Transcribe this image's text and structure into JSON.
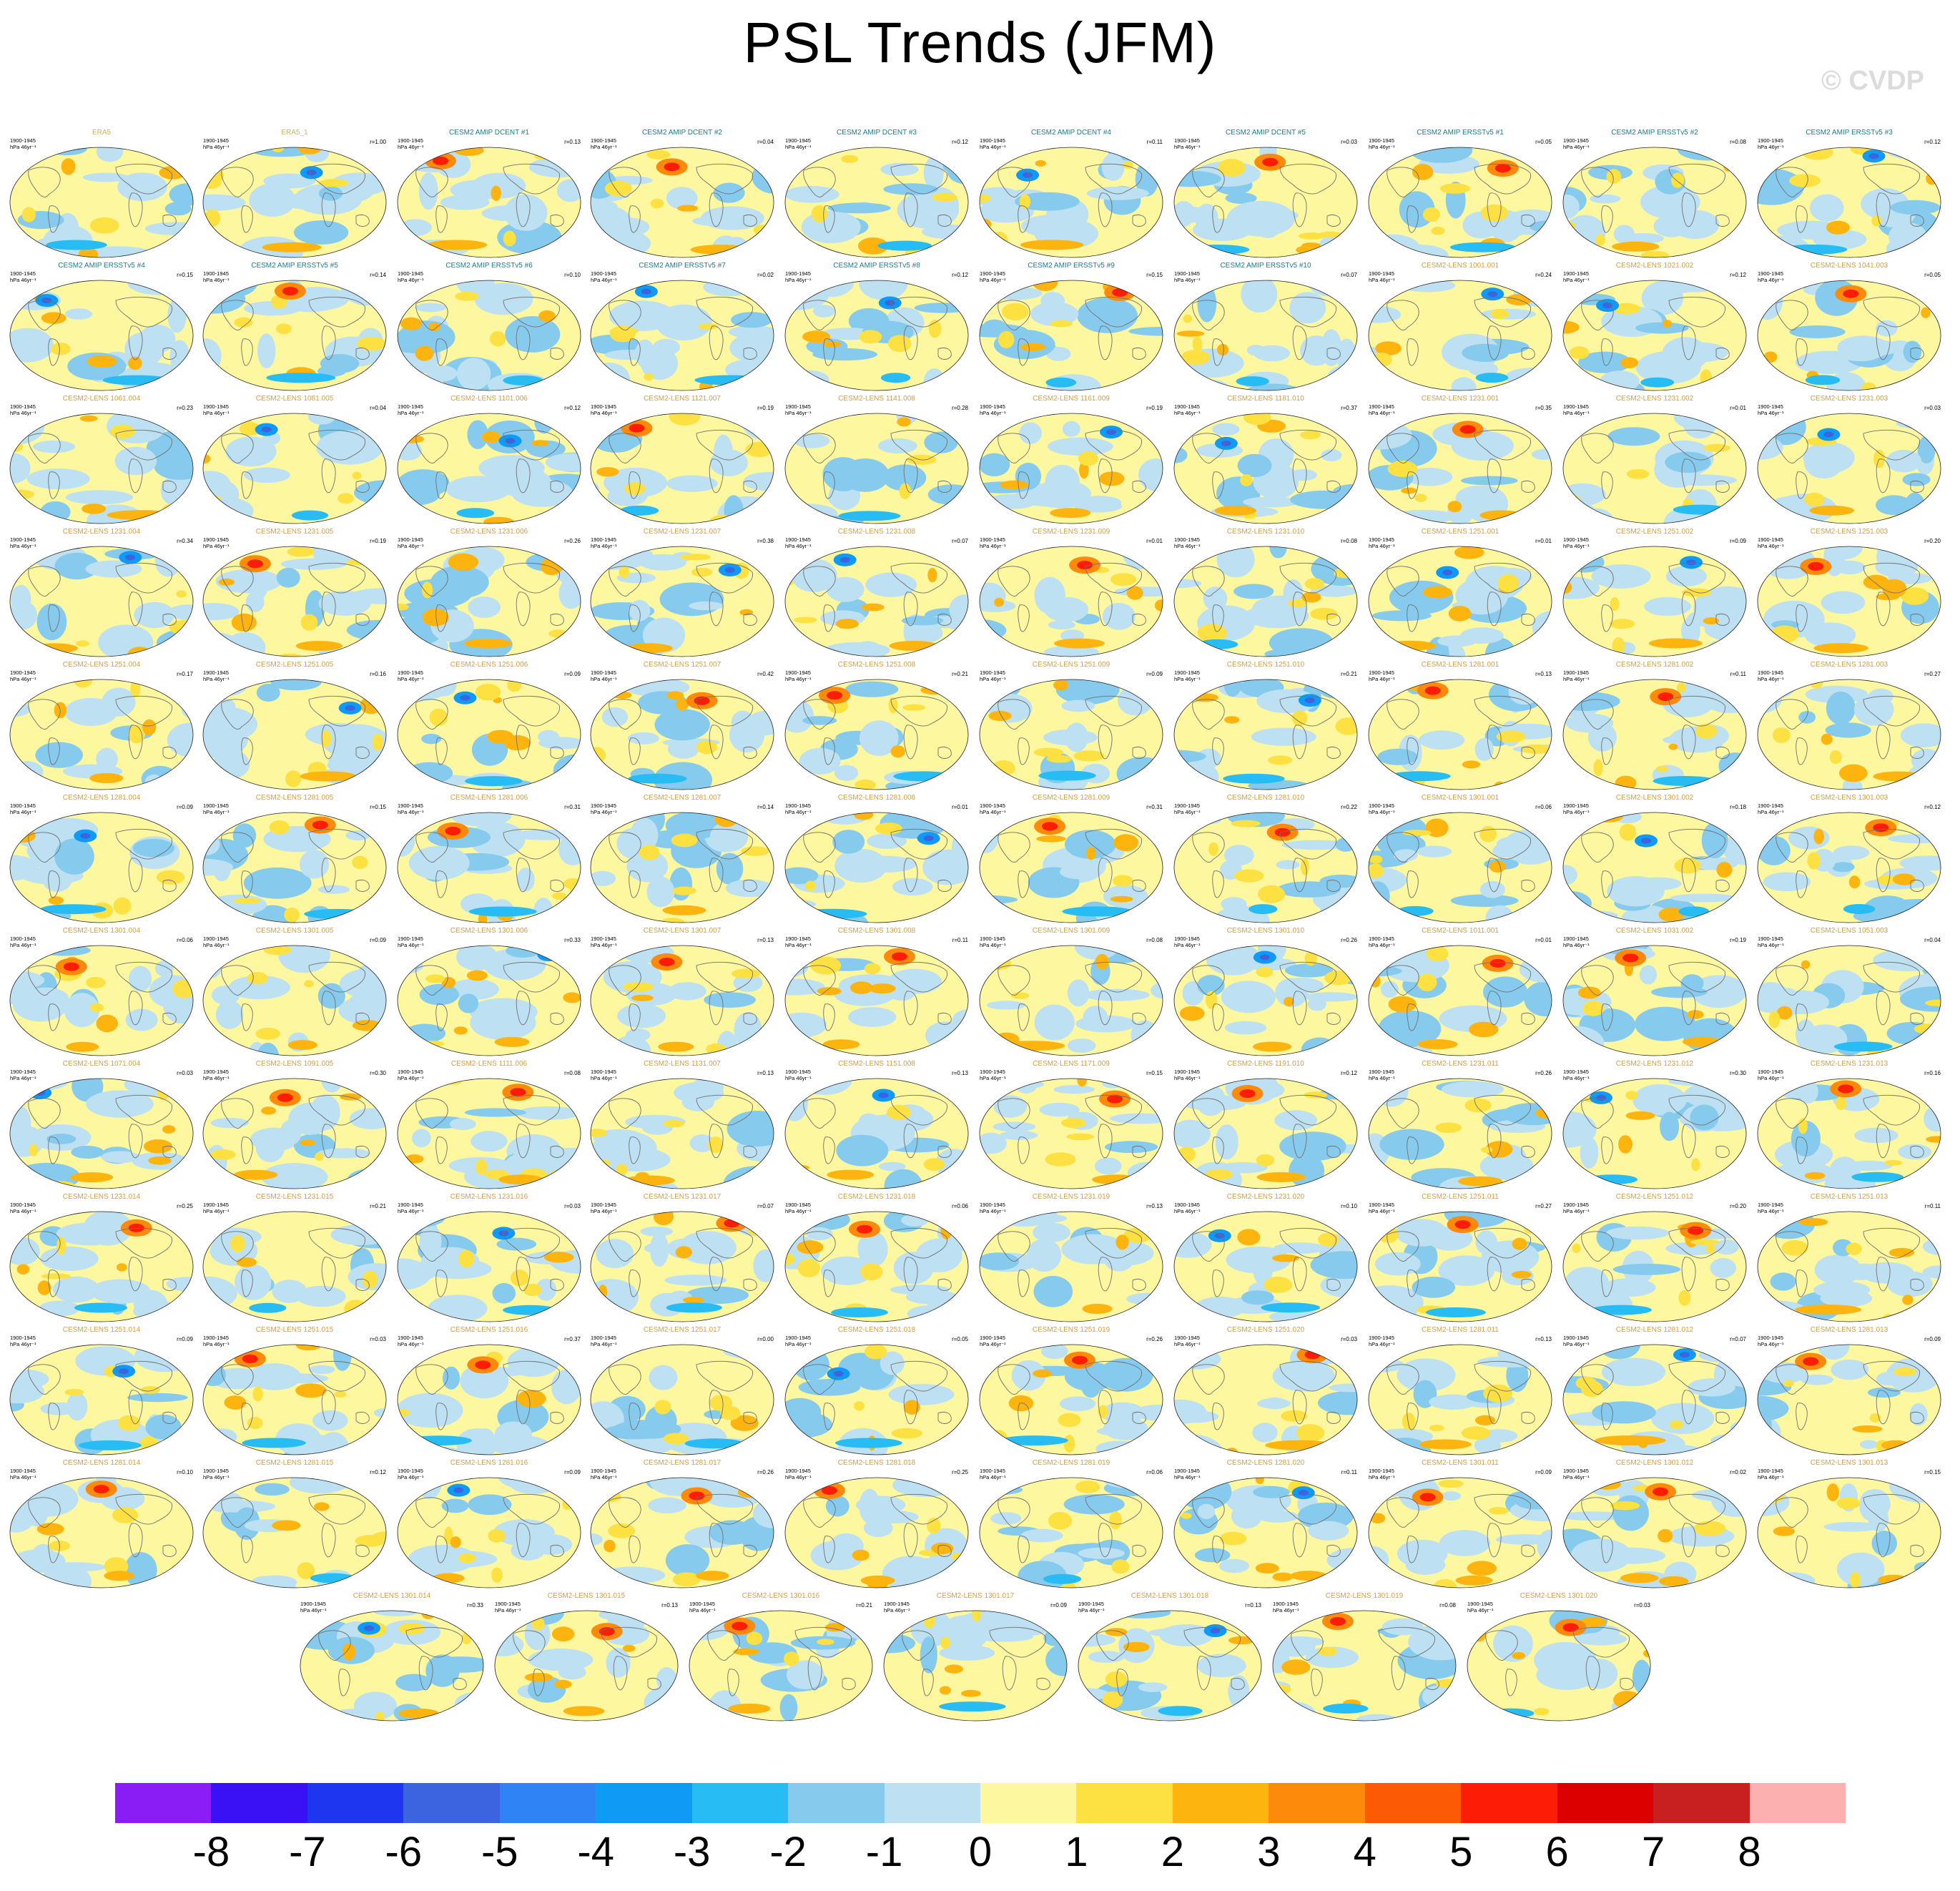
{
  "title": "PSL Trends (JFM)",
  "watermark": "© CVDP",
  "chart_data": {
    "type": "heatmap",
    "title": "PSL Trends (JFM)",
    "period": "1900-1945",
    "units": "hPa 46yr⁻¹",
    "colorbar": {
      "levels": [
        -8,
        -7,
        -6,
        -5,
        -4,
        -3,
        -2,
        -1,
        0,
        1,
        2,
        3,
        4,
        5,
        6,
        7,
        8
      ],
      "labels": [
        "-8",
        "-7",
        "-6",
        "-5",
        "-4",
        "-3",
        "-2",
        "-1",
        "0",
        "1",
        "2",
        "3",
        "4",
        "5",
        "6",
        "7",
        "8"
      ],
      "colors": [
        "#8a1cf5",
        "#3a10f5",
        "#1f36f0",
        "#3c64e0",
        "#2f83f5",
        "#0f9bf5",
        "#28bcf5",
        "#86cbee",
        "#bde1f3",
        "#fdf7a0",
        "#fde142",
        "#fdb40f",
        "#fd8a0a",
        "#fd5a05",
        "#fd1c05",
        "#dc0000",
        "#c82020",
        "#fdb0b0"
      ]
    },
    "panels": [
      {
        "name": "ERA5",
        "r": "",
        "group": "obs"
      },
      {
        "name": "ERA5_1",
        "r": "r=1.00",
        "group": "obs"
      },
      {
        "name": "CESM2 AMIP DCENT #1",
        "r": "r=0.13",
        "group": "amip"
      },
      {
        "name": "CESM2 AMIP DCENT #2",
        "r": "r=0.04",
        "group": "amip"
      },
      {
        "name": "CESM2 AMIP DCENT #3",
        "r": "r=0.12",
        "group": "amip"
      },
      {
        "name": "CESM2 AMIP DCENT #4",
        "r": "r=0.11",
        "group": "amip"
      },
      {
        "name": "CESM2 AMIP DCENT #5",
        "r": "r=0.03",
        "group": "amip"
      },
      {
        "name": "CESM2 AMIP ERSSTv5 #1",
        "r": "r=0.05",
        "group": "amip"
      },
      {
        "name": "CESM2 AMIP ERSSTv5 #2",
        "r": "r=0.08",
        "group": "amip"
      },
      {
        "name": "CESM2 AMIP ERSSTv5 #3",
        "r": "r=0.12",
        "group": "amip"
      },
      {
        "name": "CESM2 AMIP ERSSTv5 #4",
        "r": "r=0.15",
        "group": "amip"
      },
      {
        "name": "CESM2 AMIP ERSSTv5 #5",
        "r": "r=0.14",
        "group": "amip"
      },
      {
        "name": "CESM2 AMIP ERSSTv5 #6",
        "r": "r=0.10",
        "group": "amip"
      },
      {
        "name": "CESM2 AMIP ERSSTv5 #7",
        "r": "r=0.02",
        "group": "amip"
      },
      {
        "name": "CESM2 AMIP ERSSTv5 #8",
        "r": "r=0.12",
        "group": "amip"
      },
      {
        "name": "CESM2 AMIP ERSSTv5 #9",
        "r": "r=0.15",
        "group": "amip"
      },
      {
        "name": "CESM2 AMIP ERSSTv5 #10",
        "r": "r=0.07",
        "group": "amip"
      },
      {
        "name": "CESM2-LENS 1001.001",
        "r": "r=0.24",
        "group": "lens"
      },
      {
        "name": "CESM2-LENS 1021.002",
        "r": "r=0.12",
        "group": "lens"
      },
      {
        "name": "CESM2-LENS 1041.003",
        "r": "r=0.05",
        "group": "lens"
      },
      {
        "name": "CESM2-LENS 1061.004",
        "r": "r=0.23",
        "group": "lens"
      },
      {
        "name": "CESM2-LENS 1081.005",
        "r": "r=0.04",
        "group": "lens"
      },
      {
        "name": "CESM2-LENS 1101.006",
        "r": "r=0.12",
        "group": "lens"
      },
      {
        "name": "CESM2-LENS 1121.007",
        "r": "r=0.19",
        "group": "lens"
      },
      {
        "name": "CESM2-LENS 1141.008",
        "r": "r=0.28",
        "group": "lens"
      },
      {
        "name": "CESM2-LENS 1161.009",
        "r": "r=0.19",
        "group": "lens"
      },
      {
        "name": "CESM2-LENS 1181.010",
        "r": "r=0.37",
        "group": "lens"
      },
      {
        "name": "CESM2-LENS 1231.001",
        "r": "r=0.35",
        "group": "lens"
      },
      {
        "name": "CESM2-LENS 1231.002",
        "r": "r=0.01",
        "group": "lens"
      },
      {
        "name": "CESM2-LENS 1231.003",
        "r": "r=0.03",
        "group": "lens"
      },
      {
        "name": "CESM2-LENS 1231.004",
        "r": "r=0.34",
        "group": "lens"
      },
      {
        "name": "CESM2-LENS 1231.005",
        "r": "r=0.19",
        "group": "lens"
      },
      {
        "name": "CESM2-LENS 1231.006",
        "r": "r=0.26",
        "group": "lens"
      },
      {
        "name": "CESM2-LENS 1231.007",
        "r": "r=0.38",
        "group": "lens"
      },
      {
        "name": "CESM2-LENS 1231.008",
        "r": "r=0.07",
        "group": "lens"
      },
      {
        "name": "CESM2-LENS 1231.009",
        "r": "r=0.01",
        "group": "lens"
      },
      {
        "name": "CESM2-LENS 1231.010",
        "r": "r=0.08",
        "group": "lens"
      },
      {
        "name": "CESM2-LENS 1251.001",
        "r": "r=0.01",
        "group": "lens"
      },
      {
        "name": "CESM2-LENS 1251.002",
        "r": "r=0.09",
        "group": "lens"
      },
      {
        "name": "CESM2-LENS 1251.003",
        "r": "r=0.20",
        "group": "lens"
      },
      {
        "name": "CESM2-LENS 1251.004",
        "r": "r=0.17",
        "group": "lens"
      },
      {
        "name": "CESM2-LENS 1251.005",
        "r": "r=0.16",
        "group": "lens"
      },
      {
        "name": "CESM2-LENS 1251.006",
        "r": "r=0.09",
        "group": "lens"
      },
      {
        "name": "CESM2-LENS 1251.007",
        "r": "r=0.42",
        "group": "lens"
      },
      {
        "name": "CESM2-LENS 1251.008",
        "r": "r=0.21",
        "group": "lens"
      },
      {
        "name": "CESM2-LENS 1251.009",
        "r": "r=0.09",
        "group": "lens"
      },
      {
        "name": "CESM2-LENS 1251.010",
        "r": "r=0.21",
        "group": "lens"
      },
      {
        "name": "CESM2-LENS 1281.001",
        "r": "r=0.13",
        "group": "lens"
      },
      {
        "name": "CESM2-LENS 1281.002",
        "r": "r=0.11",
        "group": "lens"
      },
      {
        "name": "CESM2-LENS 1281.003",
        "r": "r=0.27",
        "group": "lens"
      },
      {
        "name": "CESM2-LENS 1281.004",
        "r": "r=0.09",
        "group": "lens"
      },
      {
        "name": "CESM2-LENS 1281.005",
        "r": "r=0.15",
        "group": "lens"
      },
      {
        "name": "CESM2-LENS 1281.006",
        "r": "r=0.31",
        "group": "lens"
      },
      {
        "name": "CESM2-LENS 1281.007",
        "r": "r=0.14",
        "group": "lens"
      },
      {
        "name": "CESM2-LENS 1281.008",
        "r": "r=0.01",
        "group": "lens"
      },
      {
        "name": "CESM2-LENS 1281.009",
        "r": "r=0.31",
        "group": "lens"
      },
      {
        "name": "CESM2-LENS 1281.010",
        "r": "r=0.22",
        "group": "lens"
      },
      {
        "name": "CESM2-LENS 1301.001",
        "r": "r=0.06",
        "group": "lens"
      },
      {
        "name": "CESM2-LENS 1301.002",
        "r": "r=0.18",
        "group": "lens"
      },
      {
        "name": "CESM2-LENS 1301.003",
        "r": "r=0.12",
        "group": "lens"
      },
      {
        "name": "CESM2-LENS 1301.004",
        "r": "r=0.06",
        "group": "lens"
      },
      {
        "name": "CESM2-LENS 1301.005",
        "r": "r=0.09",
        "group": "lens"
      },
      {
        "name": "CESM2-LENS 1301.006",
        "r": "r=0.33",
        "group": "lens"
      },
      {
        "name": "CESM2-LENS 1301.007",
        "r": "r=0.13",
        "group": "lens"
      },
      {
        "name": "CESM2-LENS 1301.008",
        "r": "r=0.11",
        "group": "lens"
      },
      {
        "name": "CESM2-LENS 1301.009",
        "r": "r=0.08",
        "group": "lens"
      },
      {
        "name": "CESM2-LENS 1301.010",
        "r": "r=0.26",
        "group": "lens"
      },
      {
        "name": "CESM2-LENS 1011.001",
        "r": "r=0.01",
        "group": "lens"
      },
      {
        "name": "CESM2-LENS 1031.002",
        "r": "r=0.19",
        "group": "lens"
      },
      {
        "name": "CESM2-LENS 1051.003",
        "r": "r=0.04",
        "group": "lens"
      },
      {
        "name": "CESM2-LENS 1071.004",
        "r": "r=0.03",
        "group": "lens"
      },
      {
        "name": "CESM2-LENS 1091.005",
        "r": "r=0.30",
        "group": "lens"
      },
      {
        "name": "CESM2-LENS 1111.006",
        "r": "r=0.08",
        "group": "lens"
      },
      {
        "name": "CESM2-LENS 1131.007",
        "r": "r=0.13",
        "group": "lens"
      },
      {
        "name": "CESM2-LENS 1151.008",
        "r": "r=0.13",
        "group": "lens"
      },
      {
        "name": "CESM2-LENS 1171.009",
        "r": "r=0.15",
        "group": "lens"
      },
      {
        "name": "CESM2-LENS 1191.010",
        "r": "r=0.12",
        "group": "lens"
      },
      {
        "name": "CESM2-LENS 1231.011",
        "r": "r=0.26",
        "group": "lens"
      },
      {
        "name": "CESM2-LENS 1231.012",
        "r": "r=0.30",
        "group": "lens"
      },
      {
        "name": "CESM2-LENS 1231.013",
        "r": "r=0.16",
        "group": "lens"
      },
      {
        "name": "CESM2-LENS 1231.014",
        "r": "r=0.25",
        "group": "lens"
      },
      {
        "name": "CESM2-LENS 1231.015",
        "r": "r=0.21",
        "group": "lens"
      },
      {
        "name": "CESM2-LENS 1231.016",
        "r": "r=0.03",
        "group": "lens"
      },
      {
        "name": "CESM2-LENS 1231.017",
        "r": "r=0.07",
        "group": "lens"
      },
      {
        "name": "CESM2-LENS 1231.018",
        "r": "r=0.06",
        "group": "lens"
      },
      {
        "name": "CESM2-LENS 1231.019",
        "r": "r=0.13",
        "group": "lens"
      },
      {
        "name": "CESM2-LENS 1231.020",
        "r": "r=0.10",
        "group": "lens"
      },
      {
        "name": "CESM2-LENS 1251.011",
        "r": "r=0.27",
        "group": "lens"
      },
      {
        "name": "CESM2-LENS 1251.012",
        "r": "r=0.20",
        "group": "lens"
      },
      {
        "name": "CESM2-LENS 1251.013",
        "r": "r=0.11",
        "group": "lens"
      },
      {
        "name": "CESM2-LENS 1251.014",
        "r": "r=0.09",
        "group": "lens"
      },
      {
        "name": "CESM2-LENS 1251.015",
        "r": "r=0.03",
        "group": "lens"
      },
      {
        "name": "CESM2-LENS 1251.016",
        "r": "r=0.37",
        "group": "lens"
      },
      {
        "name": "CESM2-LENS 1251.017",
        "r": "r=0.00",
        "group": "lens"
      },
      {
        "name": "CESM2-LENS 1251.018",
        "r": "r=0.05",
        "group": "lens"
      },
      {
        "name": "CESM2-LENS 1251.019",
        "r": "r=0.26",
        "group": "lens"
      },
      {
        "name": "CESM2-LENS 1251.020",
        "r": "r=0.03",
        "group": "lens"
      },
      {
        "name": "CESM2-LENS 1281.011",
        "r": "r=0.13",
        "group": "lens"
      },
      {
        "name": "CESM2-LENS 1281.012",
        "r": "r=0.07",
        "group": "lens"
      },
      {
        "name": "CESM2-LENS 1281.013",
        "r": "r=0.09",
        "group": "lens"
      },
      {
        "name": "CESM2-LENS 1281.014",
        "r": "r=0.10",
        "group": "lens"
      },
      {
        "name": "CESM2-LENS 1281.015",
        "r": "r=0.12",
        "group": "lens"
      },
      {
        "name": "CESM2-LENS 1281.016",
        "r": "r=0.09",
        "group": "lens"
      },
      {
        "name": "CESM2-LENS 1281.017",
        "r": "r=0.26",
        "group": "lens"
      },
      {
        "name": "CESM2-LENS 1281.018",
        "r": "r=0.25",
        "group": "lens"
      },
      {
        "name": "CESM2-LENS 1281.019",
        "r": "r=0.06",
        "group": "lens"
      },
      {
        "name": "CESM2-LENS 1281.020",
        "r": "r=0.11",
        "group": "lens"
      },
      {
        "name": "CESM2-LENS 1301.011",
        "r": "r=0.09",
        "group": "lens"
      },
      {
        "name": "CESM2-LENS 1301.012",
        "r": "r=0.02",
        "group": "lens"
      },
      {
        "name": "CESM2-LENS 1301.013",
        "r": "r=0.15",
        "group": "lens"
      },
      {
        "name": "CESM2-LENS 1301.014",
        "r": "r=0.33",
        "group": "lens"
      },
      {
        "name": "CESM2-LENS 1301.015",
        "r": "r=0.13",
        "group": "lens"
      },
      {
        "name": "CESM2-LENS 1301.016",
        "r": "r=0.21",
        "group": "lens"
      },
      {
        "name": "CESM2-LENS 1301.017",
        "r": "r=0.09",
        "group": "lens"
      },
      {
        "name": "CESM2-LENS 1301.018",
        "r": "r=0.13",
        "group": "lens"
      },
      {
        "name": "CESM2-LENS 1301.019",
        "r": "r=0.08",
        "group": "lens"
      },
      {
        "name": "CESM2-LENS 1301.020",
        "r": "r=0.03",
        "group": "lens"
      }
    ],
    "group_colors": {
      "obs": "#c8b45a",
      "amip": "#1c7c8c",
      "lens": "#d2a040"
    }
  }
}
